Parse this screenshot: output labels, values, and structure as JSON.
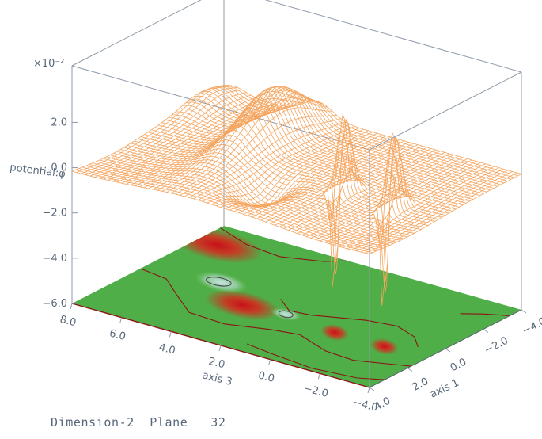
{
  "chart_data": {
    "type": "surface",
    "title": "",
    "z_axis": {
      "label": "potential:φ",
      "multiplier_label": "×10⁻²",
      "ticks": [
        {
          "value": -6.0,
          "label": "−6.0"
        },
        {
          "value": -4.0,
          "label": "−4.0"
        },
        {
          "value": -2.0,
          "label": "−2.0"
        },
        {
          "value": 0.0,
          "label": "0.0"
        },
        {
          "value": 2.0,
          "label": "2.0"
        }
      ],
      "range": [
        -6.0,
        4.5
      ]
    },
    "axis3": {
      "label": "axis 3",
      "range": [
        -4.0,
        8.0
      ],
      "ticks": [
        {
          "value": 8.0,
          "label": "8.0"
        },
        {
          "value": 6.0,
          "label": "6.0"
        },
        {
          "value": 4.0,
          "label": "4.0"
        },
        {
          "value": 2.0,
          "label": "2.0"
        },
        {
          "value": 0.0,
          "label": "0.0"
        },
        {
          "value": -2.0,
          "label": "−2.0"
        },
        {
          "value": -4.0,
          "label": "−4.0"
        }
      ]
    },
    "axis1": {
      "label": "axis 1",
      "range": [
        -4.0,
        4.0
      ],
      "ticks": [
        {
          "value": 4.0,
          "label": "4.0"
        },
        {
          "value": 2.0,
          "label": "2.0"
        },
        {
          "value": 0.0,
          "label": "0.0"
        },
        {
          "value": -2.0,
          "label": "−2.0"
        },
        {
          "value": -4.0,
          "label": "−4.0"
        }
      ]
    },
    "surface_color": "#f5a55f",
    "floor_colors": {
      "base": "#4fae47",
      "peak": "#d41e1e",
      "trough": "#b8dcd4",
      "contour": "#8b1515"
    },
    "features": [
      {
        "kind": "ridge",
        "a3": 4.2,
        "a1": -1.5,
        "amplitude": 2.3
      },
      {
        "kind": "spike",
        "a3": -0.3,
        "a1": 0.9,
        "amplitude": 3.8
      },
      {
        "kind": "spike",
        "a3": -2.3,
        "a1": 1.0,
        "amplitude": 3.8
      },
      {
        "kind": "well",
        "a3": -0.3,
        "a1": 1.0,
        "amplitude": -6.0
      },
      {
        "kind": "well",
        "a3": -2.3,
        "a1": 1.0,
        "amplitude": -6.0
      },
      {
        "kind": "dip",
        "a3": 2.0,
        "a1": 1.8,
        "amplitude": -1.0
      }
    ]
  },
  "footer": {
    "label": "Dimension-2  Plane",
    "value": "32"
  }
}
